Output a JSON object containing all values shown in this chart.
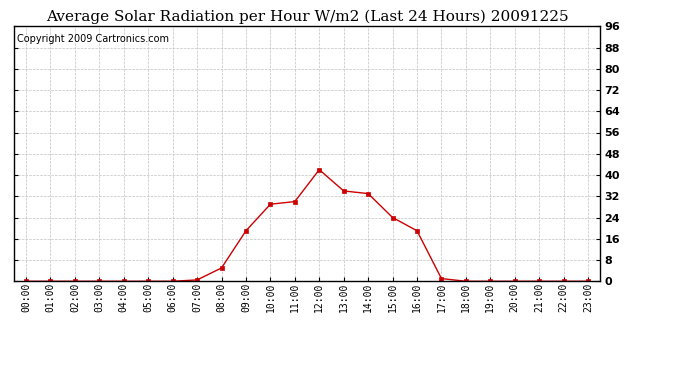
{
  "title": "Average Solar Radiation per Hour W/m2 (Last 24 Hours) 20091225",
  "copyright": "Copyright 2009 Cartronics.com",
  "hours": [
    "00:00",
    "01:00",
    "02:00",
    "03:00",
    "04:00",
    "05:00",
    "06:00",
    "07:00",
    "08:00",
    "09:00",
    "10:00",
    "11:00",
    "12:00",
    "13:00",
    "14:00",
    "15:00",
    "16:00",
    "17:00",
    "18:00",
    "19:00",
    "20:00",
    "21:00",
    "22:00",
    "23:00"
  ],
  "values": [
    0.0,
    0.0,
    0.0,
    0.0,
    0.0,
    0.0,
    0.0,
    0.5,
    5.0,
    19.0,
    29.0,
    30.0,
    42.0,
    34.0,
    33.0,
    24.0,
    19.0,
    1.0,
    0.0,
    0.0,
    0.0,
    0.0,
    0.0,
    0.0
  ],
  "line_color": "#cc0000",
  "marker": "s",
  "marker_size": 2.5,
  "background_color": "#ffffff",
  "plot_bg_color": "#ffffff",
  "grid_color": "#c0c0c0",
  "ylim": [
    0.0,
    96.0
  ],
  "yticks": [
    0.0,
    8.0,
    16.0,
    24.0,
    32.0,
    40.0,
    48.0,
    56.0,
    64.0,
    72.0,
    80.0,
    88.0,
    96.0
  ],
  "title_fontsize": 11,
  "copyright_fontsize": 7,
  "tick_fontsize": 7,
  "ytick_fontsize": 8
}
